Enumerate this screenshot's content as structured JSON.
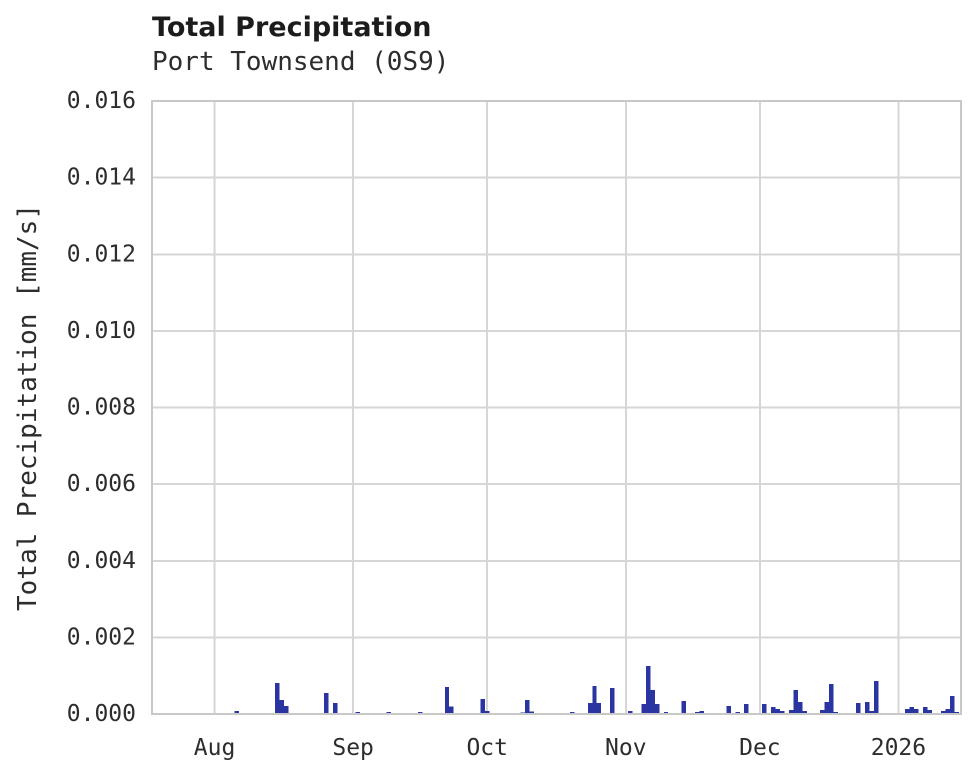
{
  "page": {
    "background": "#ffffff"
  },
  "chart_data": {
    "type": "bar",
    "title": "Total Precipitation",
    "subtitle": "Port Townsend (0S9)",
    "ylabel": "Total Precipitation [mm/s]",
    "xlabel": "",
    "ylim": [
      0,
      0.016
    ],
    "grid": true,
    "legend": false,
    "colors": {
      "bar": "#2a35a2",
      "grid": "#d6d6d6",
      "border": "#c8c8c8",
      "text": "#2d2d2d",
      "title": "#1c1c1c"
    },
    "x_domain": [
      "2025-07-18",
      "2026-01-15"
    ],
    "xticks": [
      {
        "date": "2025-08-01",
        "label": "Aug"
      },
      {
        "date": "2025-09-01",
        "label": "Sep"
      },
      {
        "date": "2025-10-01",
        "label": "Oct"
      },
      {
        "date": "2025-11-01",
        "label": "Nov"
      },
      {
        "date": "2025-12-01",
        "label": "Dec"
      },
      {
        "date": "2026-01-01",
        "label": "2026"
      }
    ],
    "yticks": [
      {
        "value": 0.0,
        "label": "0.000"
      },
      {
        "value": 0.002,
        "label": "0.002"
      },
      {
        "value": 0.004,
        "label": "0.004"
      },
      {
        "value": 0.006,
        "label": "0.006"
      },
      {
        "value": 0.008,
        "label": "0.008"
      },
      {
        "value": 0.01,
        "label": "0.010"
      },
      {
        "value": 0.012,
        "label": "0.012"
      },
      {
        "value": 0.014,
        "label": "0.014"
      },
      {
        "value": 0.016,
        "label": "0.016"
      }
    ],
    "series": [
      {
        "name": "Total Precipitation",
        "unit": "mm/s",
        "points": [
          {
            "date": "2025-08-06",
            "value": 8e-05
          },
          {
            "date": "2025-08-15",
            "value": 0.00081
          },
          {
            "date": "2025-08-16",
            "value": 0.00037
          },
          {
            "date": "2025-08-17",
            "value": 0.00021
          },
          {
            "date": "2025-08-26",
            "value": 0.00055
          },
          {
            "date": "2025-08-28",
            "value": 0.00029
          },
          {
            "date": "2025-09-02",
            "value": 5e-05
          },
          {
            "date": "2025-09-09",
            "value": 5e-05
          },
          {
            "date": "2025-09-16",
            "value": 5e-05
          },
          {
            "date": "2025-09-22",
            "value": 0.0007
          },
          {
            "date": "2025-09-23",
            "value": 0.0002
          },
          {
            "date": "2025-09-30",
            "value": 0.00039
          },
          {
            "date": "2025-10-01",
            "value": 8e-05
          },
          {
            "date": "2025-10-09",
            "value": 4e-05
          },
          {
            "date": "2025-10-10",
            "value": 0.00037
          },
          {
            "date": "2025-10-11",
            "value": 6e-05
          },
          {
            "date": "2025-10-20",
            "value": 5e-05
          },
          {
            "date": "2025-10-24",
            "value": 0.00029
          },
          {
            "date": "2025-10-25",
            "value": 0.00073
          },
          {
            "date": "2025-10-26",
            "value": 0.00029
          },
          {
            "date": "2025-10-29",
            "value": 0.00068
          },
          {
            "date": "2025-11-02",
            "value": 8e-05
          },
          {
            "date": "2025-11-05",
            "value": 0.00026
          },
          {
            "date": "2025-11-06",
            "value": 0.00125
          },
          {
            "date": "2025-11-07",
            "value": 0.00063
          },
          {
            "date": "2025-11-08",
            "value": 0.00026
          },
          {
            "date": "2025-11-10",
            "value": 5e-05
          },
          {
            "date": "2025-11-14",
            "value": 0.00034
          },
          {
            "date": "2025-11-17",
            "value": 5e-05
          },
          {
            "date": "2025-11-18",
            "value": 8e-05
          },
          {
            "date": "2025-11-24",
            "value": 0.00021
          },
          {
            "date": "2025-11-26",
            "value": 5e-05
          },
          {
            "date": "2025-11-28",
            "value": 0.00026
          },
          {
            "date": "2025-12-02",
            "value": 0.00026
          },
          {
            "date": "2025-12-04",
            "value": 0.00018
          },
          {
            "date": "2025-12-05",
            "value": 0.00013
          },
          {
            "date": "2025-12-06",
            "value": 8e-05
          },
          {
            "date": "2025-12-08",
            "value": 0.0001
          },
          {
            "date": "2025-12-09",
            "value": 0.00063
          },
          {
            "date": "2025-12-10",
            "value": 0.00031
          },
          {
            "date": "2025-12-11",
            "value": 8e-05
          },
          {
            "date": "2025-12-15",
            "value": 0.0001
          },
          {
            "date": "2025-12-16",
            "value": 0.00031
          },
          {
            "date": "2025-12-17",
            "value": 0.00078
          },
          {
            "date": "2025-12-18",
            "value": 5e-05
          },
          {
            "date": "2025-12-23",
            "value": 0.00029
          },
          {
            "date": "2025-12-25",
            "value": 0.00031
          },
          {
            "date": "2025-12-26",
            "value": 8e-05
          },
          {
            "date": "2025-12-27",
            "value": 0.00086
          },
          {
            "date": "2026-01-03",
            "value": 0.00013
          },
          {
            "date": "2026-01-04",
            "value": 0.00018
          },
          {
            "date": "2026-01-05",
            "value": 0.00013
          },
          {
            "date": "2026-01-07",
            "value": 0.00018
          },
          {
            "date": "2026-01-08",
            "value": 0.0001
          },
          {
            "date": "2026-01-11",
            "value": 8e-05
          },
          {
            "date": "2026-01-12",
            "value": 0.00013
          },
          {
            "date": "2026-01-13",
            "value": 0.00047
          },
          {
            "date": "2026-01-14",
            "value": 5e-05
          }
        ]
      }
    ]
  }
}
